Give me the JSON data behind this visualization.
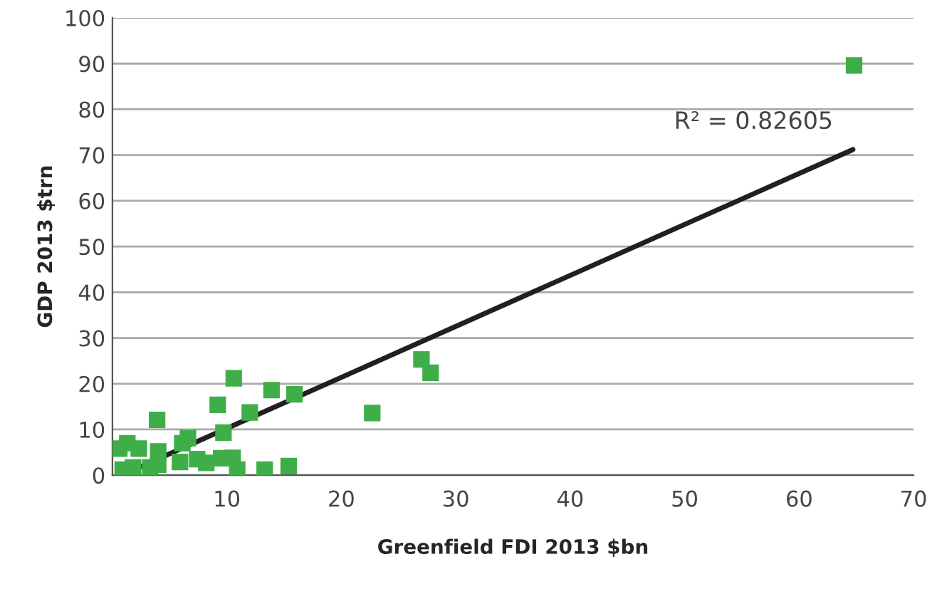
{
  "chart_data": {
    "type": "scatter",
    "xlabel": "Greenfield FDI 2013 $bn",
    "ylabel": "GDP 2013 $trn",
    "xlim": [
      0,
      70
    ],
    "ylim": [
      0,
      100
    ],
    "xticks": [
      10,
      20,
      30,
      40,
      50,
      60,
      70
    ],
    "yticks": [
      0,
      10,
      20,
      30,
      40,
      50,
      60,
      70,
      80,
      90,
      100
    ],
    "grid": "y",
    "annotations": [
      "R² = 0.82605"
    ],
    "series": [
      {
        "color": "#3fae49",
        "marker": "square",
        "x": [
          64.8,
          27.0,
          27.8,
          22.7,
          10.6,
          13.9,
          15.9,
          9.2,
          12.0,
          3.9,
          9.7,
          6.6,
          6.1,
          15.4,
          13.3,
          10.9,
          10.5,
          9.5,
          8.2,
          7.4,
          5.9,
          4.0,
          4.0,
          2.3,
          1.3,
          0.6,
          0.9,
          1.8,
          3.3
        ],
        "values": [
          89.6,
          25.3,
          22.4,
          13.6,
          21.2,
          18.6,
          17.7,
          15.4,
          13.7,
          12.1,
          9.3,
          8.1,
          7.0,
          2.0,
          1.2,
          1.2,
          3.8,
          3.7,
          2.7,
          3.5,
          2.9,
          5.2,
          2.3,
          5.8,
          7.0,
          5.8,
          1.2,
          1.7,
          1.7
        ]
      },
      {
        "type": "line",
        "color": "#231f20",
        "x": [
          0.8,
          64.7
        ],
        "values": [
          0,
          71.2
        ]
      }
    ]
  }
}
